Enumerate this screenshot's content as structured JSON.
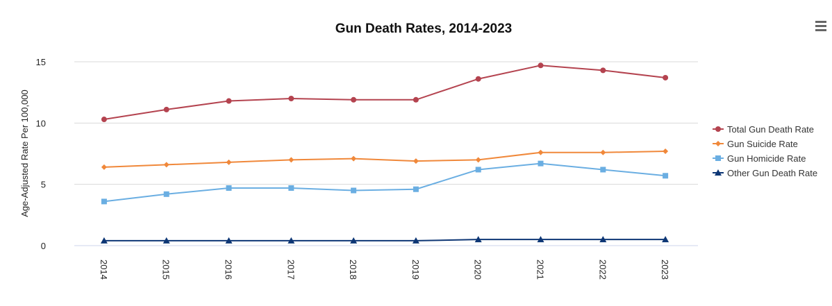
{
  "chart_data": {
    "type": "line",
    "title": "Gun Death Rates, 2014-2023",
    "xlabel": "",
    "ylabel": "Age-Adjusted Rate Per 100,000",
    "ylim": [
      0,
      15
    ],
    "yticks": [
      "0",
      "5",
      "10",
      "15"
    ],
    "ytick_values": [
      0,
      5,
      10,
      15
    ],
    "grid": true,
    "legend_position": "right",
    "categories": [
      "2014",
      "2015",
      "2016",
      "2017",
      "2018",
      "2019",
      "2020",
      "2021",
      "2022",
      "2023"
    ],
    "series": [
      {
        "name": "Total Gun Death Rate",
        "color": "#b4434f",
        "marker": "circle",
        "values": [
          10.3,
          11.1,
          11.8,
          12.0,
          11.9,
          11.9,
          13.6,
          14.7,
          14.3,
          13.7
        ]
      },
      {
        "name": "Gun Suicide Rate",
        "color": "#f0883a",
        "marker": "diamond",
        "values": [
          6.4,
          6.6,
          6.8,
          7.0,
          7.1,
          6.9,
          7.0,
          7.6,
          7.6,
          7.7
        ]
      },
      {
        "name": "Gun Homicide Rate",
        "color": "#6aaee2",
        "marker": "square",
        "values": [
          3.6,
          4.2,
          4.7,
          4.7,
          4.5,
          4.6,
          6.2,
          6.7,
          6.2,
          5.7
        ]
      },
      {
        "name": "Other Gun Death Rate",
        "color": "#0d3675",
        "marker": "triangle",
        "values": [
          0.4,
          0.4,
          0.4,
          0.4,
          0.4,
          0.4,
          0.5,
          0.5,
          0.5,
          0.5
        ]
      }
    ]
  }
}
